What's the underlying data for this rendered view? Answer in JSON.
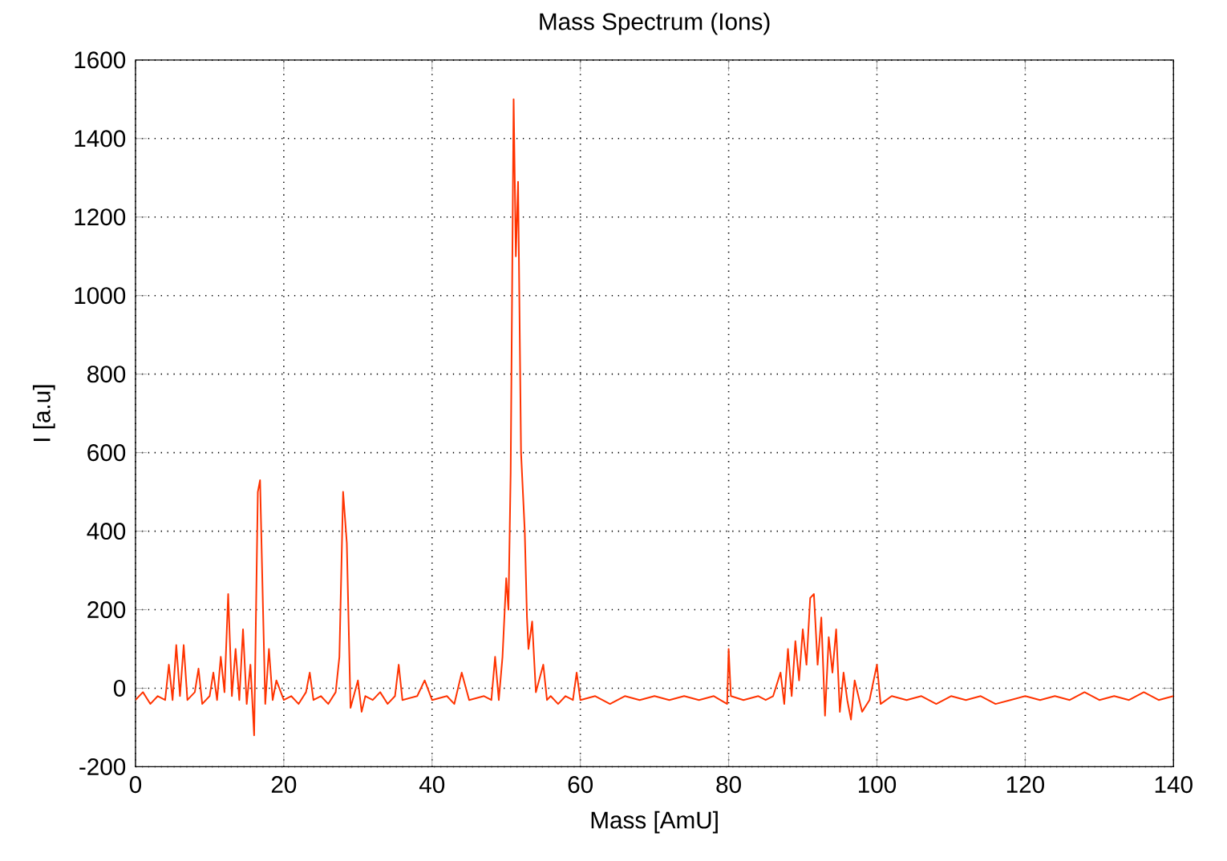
{
  "chart_data": {
    "type": "line",
    "title": "Mass Spectrum (Ions)",
    "xlabel": "Mass [AmU]",
    "ylabel": "I [a.u]",
    "xlim": [
      0,
      140
    ],
    "ylim": [
      -200,
      1600
    ],
    "xticks": [
      0,
      20,
      40,
      60,
      80,
      100,
      120,
      140
    ],
    "yticks": [
      -200,
      0,
      200,
      400,
      600,
      800,
      1000,
      1200,
      1400,
      1600
    ],
    "grid": true,
    "line_style": "solid",
    "marker": "none",
    "series": [
      {
        "color": "#ff3300",
        "x": [
          0,
          1,
          2,
          3,
          4,
          4.5,
          5,
          5.5,
          6,
          6.5,
          7,
          8,
          8.5,
          9,
          10,
          10.5,
          11,
          11.5,
          12,
          12.5,
          13,
          13.5,
          14,
          14.5,
          15,
          15.5,
          16,
          16.5,
          16.8,
          17.2,
          17.5,
          18,
          18.5,
          19,
          20,
          21,
          22,
          23,
          23.5,
          24,
          25,
          26,
          27,
          27.5,
          28,
          28.5,
          29,
          30,
          30.5,
          31,
          32,
          33,
          34,
          35,
          35.5,
          36,
          38,
          39,
          40,
          42,
          43,
          44,
          45,
          47,
          48,
          48.5,
          49,
          49.5,
          50,
          50.3,
          50.6,
          51,
          51.3,
          51.6,
          52,
          52.5,
          52.8,
          53,
          53.5,
          54,
          55,
          55.5,
          56,
          57,
          58,
          59,
          59.5,
          60,
          62,
          64,
          66,
          68,
          70,
          72,
          74,
          76,
          78,
          79.8,
          80,
          80.3,
          82,
          84,
          85,
          86,
          87,
          87.5,
          88,
          88.5,
          89,
          89.5,
          90,
          90.5,
          91,
          91.5,
          92,
          92.5,
          93,
          93.5,
          94,
          94.5,
          95,
          95.5,
          96,
          96.5,
          97,
          98,
          99,
          100,
          100.5,
          102,
          104,
          106,
          108,
          110,
          112,
          114,
          116,
          118,
          120,
          122,
          124,
          126,
          128,
          130,
          132,
          134,
          136,
          138,
          140
        ],
        "values": [
          -30,
          -10,
          -40,
          -20,
          -30,
          60,
          -30,
          110,
          -20,
          110,
          -30,
          -10,
          50,
          -40,
          -20,
          40,
          -30,
          80,
          -10,
          240,
          -20,
          100,
          -30,
          150,
          -40,
          60,
          -120,
          500,
          530,
          200,
          -40,
          100,
          -30,
          20,
          -30,
          -20,
          -40,
          -10,
          40,
          -30,
          -20,
          -40,
          -10,
          80,
          500,
          370,
          -50,
          20,
          -60,
          -20,
          -30,
          -10,
          -40,
          -20,
          60,
          -30,
          -20,
          20,
          -30,
          -20,
          -40,
          40,
          -30,
          -20,
          -30,
          80,
          -30,
          80,
          280,
          200,
          550,
          1500,
          1100,
          1290,
          600,
          400,
          180,
          100,
          170,
          -10,
          60,
          -30,
          -20,
          -40,
          -20,
          -30,
          40,
          -30,
          -20,
          -40,
          -20,
          -30,
          -20,
          -30,
          -20,
          -30,
          -20,
          -40,
          100,
          -20,
          -30,
          -20,
          -30,
          -20,
          40,
          -40,
          100,
          -20,
          120,
          20,
          150,
          60,
          230,
          240,
          60,
          180,
          -70,
          130,
          40,
          150,
          -60,
          40,
          -30,
          -80,
          20,
          -60,
          -30,
          60,
          -40,
          -20,
          -30,
          -20,
          -40,
          -20,
          -30,
          -20,
          -40,
          -30,
          -20,
          -30,
          -20,
          -30,
          -10,
          -30,
          -20,
          -30,
          -10,
          -30,
          -20
        ]
      }
    ]
  }
}
